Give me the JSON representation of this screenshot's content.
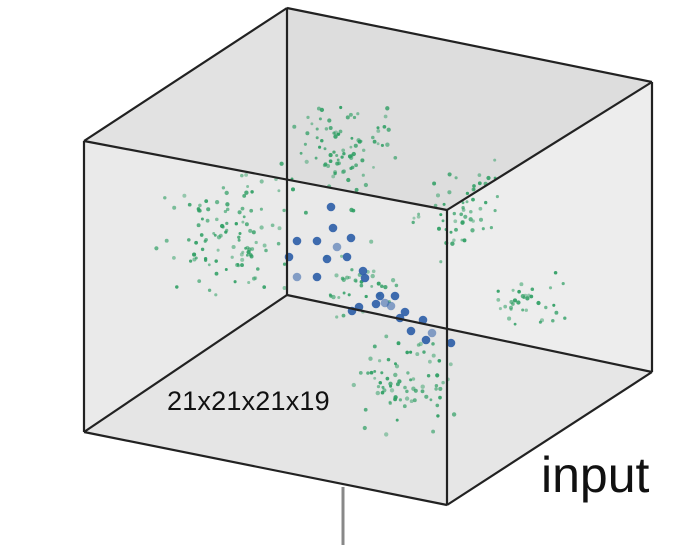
{
  "diagram": {
    "block_title": "input",
    "dimensions_label": "21x21x21x19",
    "colors": {
      "faces": "#dcdcdc",
      "edges": "#222222",
      "green_points": "#2e9e63",
      "blue_points": "#2f5fa8",
      "connector": "#888888"
    }
  }
}
